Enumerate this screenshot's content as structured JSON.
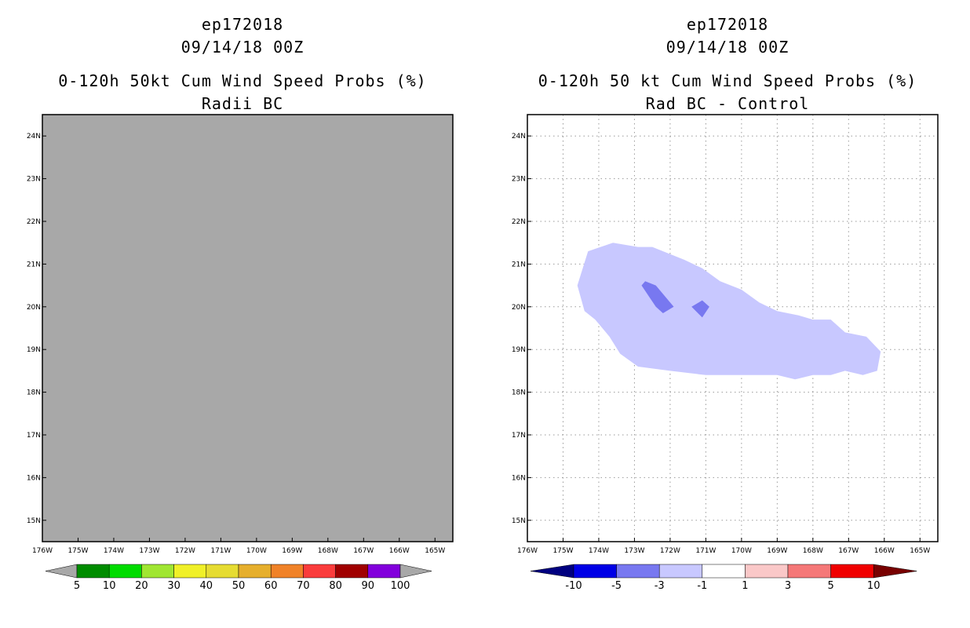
{
  "chart_data": [
    {
      "type": "heatmap",
      "titles": [
        "ep172018",
        "09/14/18 00Z",
        "0-120h 50kt Cum Wind Speed Probs (%)",
        "Radii BC"
      ],
      "xlim": [
        -176,
        -164.5
      ],
      "ylim": [
        14.5,
        24.5
      ],
      "x_ticks": [
        -176,
        -175,
        -174,
        -173,
        -172,
        -171,
        -170,
        -169,
        -168,
        -167,
        -166,
        -165
      ],
      "x_tick_labels": [
        "176W",
        "175W",
        "174W",
        "173W",
        "172W",
        "171W",
        "170W",
        "169W",
        "168W",
        "167W",
        "166W",
        "165W"
      ],
      "y_ticks": [
        15,
        16,
        17,
        18,
        19,
        20,
        21,
        22,
        23,
        24
      ],
      "y_tick_labels": [
        "15N",
        "16N",
        "17N",
        "18N",
        "19N",
        "20N",
        "21N",
        "22N",
        "23N",
        "24N"
      ],
      "grid": false,
      "field_fill": "#a8a8a8",
      "colorbar": {
        "labels": [
          "5",
          "10",
          "20",
          "30",
          "40",
          "50",
          "60",
          "70",
          "80",
          "90",
          "100"
        ],
        "under_color": "#a8a8a8",
        "over_color": "#a8a8a8",
        "colors": [
          "#008c00",
          "#00dc00",
          "#a0e632",
          "#f0f028",
          "#e6dc32",
          "#e6af2d",
          "#f08228",
          "#fa3c3c",
          "#a00000",
          "#8200dc"
        ]
      }
    },
    {
      "type": "heatmap",
      "titles": [
        "ep172018",
        "09/14/18 00Z",
        "0-120h 50 kt Cum Wind Speed Probs (%)",
        "Rad BC - Control"
      ],
      "xlim": [
        -176,
        -164.5
      ],
      "ylim": [
        14.5,
        24.5
      ],
      "x_ticks": [
        -176,
        -175,
        -174,
        -173,
        -172,
        -171,
        -170,
        -169,
        -168,
        -167,
        -166,
        -165
      ],
      "x_tick_labels": [
        "176W",
        "175W",
        "174W",
        "173W",
        "172W",
        "171W",
        "170W",
        "169W",
        "168W",
        "167W",
        "166W",
        "165W"
      ],
      "y_ticks": [
        15,
        16,
        17,
        18,
        19,
        20,
        21,
        22,
        23,
        24
      ],
      "y_tick_labels": [
        "15N",
        "16N",
        "17N",
        "18N",
        "19N",
        "20N",
        "21N",
        "22N",
        "23N",
        "24N"
      ],
      "grid": true,
      "regions": [
        {
          "name": "difference -3 to -1",
          "color": "#c8c8ff",
          "polygon": [
            [
              -174.6,
              20.5
            ],
            [
              -174.3,
              21.3
            ],
            [
              -173.6,
              21.5
            ],
            [
              -172.9,
              21.4
            ],
            [
              -172.5,
              21.4
            ],
            [
              -171.6,
              21.1
            ],
            [
              -171.1,
              20.9
            ],
            [
              -170.6,
              20.6
            ],
            [
              -170.0,
              20.4
            ],
            [
              -169.5,
              20.1
            ],
            [
              -169.0,
              19.9
            ],
            [
              -168.4,
              19.8
            ],
            [
              -168.0,
              19.7
            ],
            [
              -167.5,
              19.7
            ],
            [
              -167.1,
              19.4
            ],
            [
              -166.5,
              19.3
            ],
            [
              -166.1,
              18.95
            ],
            [
              -166.2,
              18.5
            ],
            [
              -166.6,
              18.4
            ],
            [
              -167.1,
              18.5
            ],
            [
              -167.5,
              18.4
            ],
            [
              -168.0,
              18.4
            ],
            [
              -168.5,
              18.3
            ],
            [
              -169.0,
              18.4
            ],
            [
              -169.5,
              18.4
            ],
            [
              -170.0,
              18.4
            ],
            [
              -170.5,
              18.4
            ],
            [
              -171.0,
              18.4
            ],
            [
              -172.0,
              18.5
            ],
            [
              -172.9,
              18.6
            ],
            [
              -173.4,
              18.9
            ],
            [
              -173.7,
              19.3
            ],
            [
              -174.1,
              19.7
            ],
            [
              -174.4,
              19.9
            ]
          ]
        },
        {
          "name": "difference -5 to -3 (west)",
          "color": "#7878f0",
          "polygon": [
            [
              -172.7,
              20.6
            ],
            [
              -172.4,
              20.5
            ],
            [
              -171.9,
              20.0
            ],
            [
              -172.2,
              19.85
            ],
            [
              -172.4,
              20.0
            ],
            [
              -172.8,
              20.5
            ]
          ]
        },
        {
          "name": "difference -5 to -3 (east)",
          "color": "#7878f0",
          "polygon": [
            [
              -171.4,
              20.0
            ],
            [
              -171.1,
              20.15
            ],
            [
              -170.9,
              20.0
            ],
            [
              -171.1,
              19.75
            ]
          ]
        }
      ],
      "colorbar": {
        "labels": [
          "-10",
          "-5",
          "-3",
          "-1",
          "1",
          "3",
          "5",
          "10"
        ],
        "under_color": "#000080",
        "over_color": "#780000",
        "colors": [
          "#0000e6",
          "#7878f0",
          "#c8c8ff",
          "#ffffff",
          "#fac8c8",
          "#f57878",
          "#f00000"
        ]
      }
    }
  ]
}
